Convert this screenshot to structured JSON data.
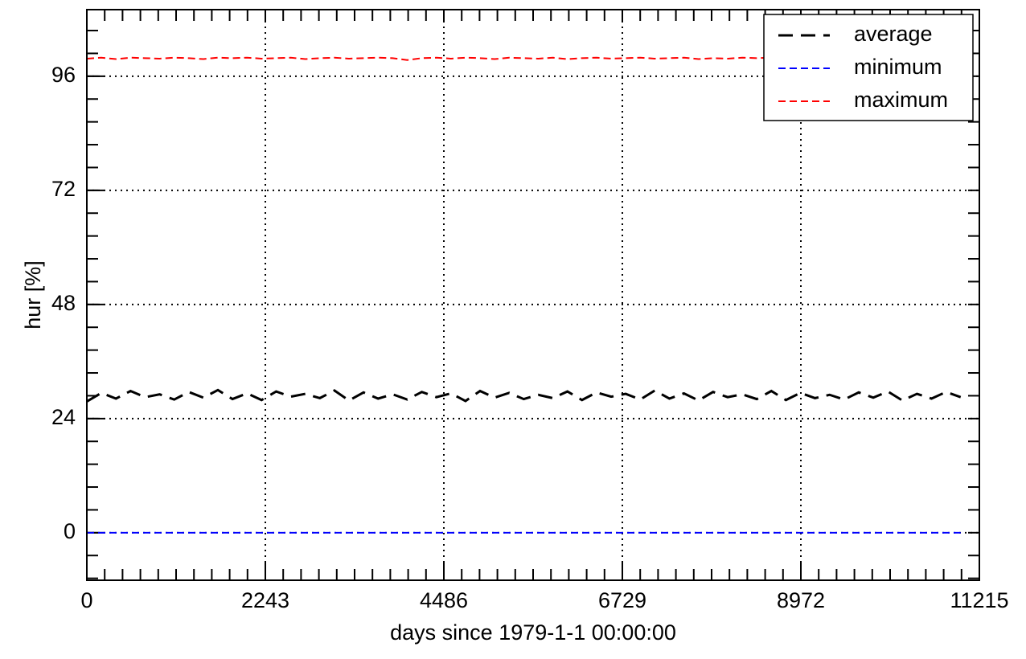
{
  "chart_data": {
    "type": "line",
    "xlabel": "days since 1979-1-1 00:00:00",
    "ylabel": "hur [%]",
    "x": [
      0,
      183,
      366,
      549,
      732,
      915,
      1098,
      1281,
      1464,
      1647,
      1830,
      2013,
      2196,
      2379,
      2562,
      2745,
      2928,
      3111,
      3294,
      3477,
      3660,
      3843,
      4026,
      4209,
      4392,
      4575,
      4758,
      4941,
      5124,
      5307,
      5490,
      5673,
      5856,
      6039,
      6222,
      6405,
      6588,
      6771,
      6954,
      7137,
      7320,
      7503,
      7686,
      7869,
      8052,
      8235,
      8418,
      8601,
      8784,
      8967,
      9150,
      9333,
      9516,
      9699,
      9882,
      10065,
      10248,
      10431,
      10614,
      10797,
      10980
    ],
    "series": [
      {
        "name": "average",
        "color": "#000000",
        "values": [
          27.6,
          29.4,
          28.2,
          29.8,
          28.5,
          29.1,
          28.0,
          29.6,
          28.4,
          30.0,
          28.1,
          29.3,
          27.9,
          29.7,
          28.6,
          29.2,
          28.3,
          29.9,
          27.8,
          29.5,
          28.2,
          29.1,
          28.0,
          29.6,
          28.5,
          29.3,
          27.7,
          29.8,
          28.4,
          29.4,
          28.1,
          29.0,
          28.3,
          29.7,
          27.9,
          29.5,
          28.6,
          29.2,
          28.0,
          29.9,
          28.2,
          29.3,
          27.8,
          29.6,
          28.5,
          29.1,
          28.1,
          29.8,
          27.9,
          29.4,
          28.3,
          29.0,
          28.0,
          29.5,
          28.4,
          29.7,
          27.8,
          29.2,
          28.2,
          29.6,
          28.5
        ]
      },
      {
        "name": "minimum",
        "color": "#0000ff",
        "values": [
          0,
          0,
          0,
          0,
          0,
          0,
          0,
          0,
          0,
          0,
          0,
          0,
          0,
          0,
          0,
          0,
          0,
          0,
          0,
          0,
          0,
          0,
          0,
          0,
          0,
          0,
          0,
          0,
          0,
          0,
          0,
          0,
          0,
          0,
          0,
          0,
          0,
          0,
          0,
          0,
          0,
          0,
          0,
          0,
          0,
          0,
          0,
          0,
          0,
          0,
          0,
          0,
          0,
          0,
          0,
          0,
          0,
          0,
          0,
          0,
          0
        ]
      },
      {
        "name": "maximum",
        "color": "#ff0000",
        "values": [
          99.7,
          99.9,
          99.6,
          99.9,
          99.8,
          99.7,
          99.9,
          99.8,
          99.6,
          99.9,
          99.8,
          99.9,
          99.7,
          99.8,
          99.9,
          99.6,
          99.8,
          99.9,
          99.7,
          99.8,
          99.9,
          99.8,
          99.4,
          99.8,
          99.9,
          99.7,
          99.9,
          99.8,
          99.6,
          99.9,
          99.8,
          99.7,
          99.9,
          99.6,
          99.8,
          99.9,
          99.7,
          99.8,
          99.9,
          99.7,
          99.8,
          99.9,
          99.6,
          99.8,
          99.7,
          99.9,
          99.8,
          99.9,
          99.3,
          99.7,
          99.8,
          99.9,
          99.6,
          99.8,
          99.9,
          99.7,
          99.8,
          99.9,
          99.7,
          99.8,
          99.9
        ]
      }
    ],
    "xlim": [
      0,
      11215
    ],
    "xticks": [
      0,
      2243,
      4486,
      6729,
      8972,
      11215
    ],
    "ylim": [
      -10,
      110
    ],
    "yticks": [
      0,
      24,
      48,
      72,
      96
    ],
    "grid": true,
    "legend": "upper right"
  }
}
